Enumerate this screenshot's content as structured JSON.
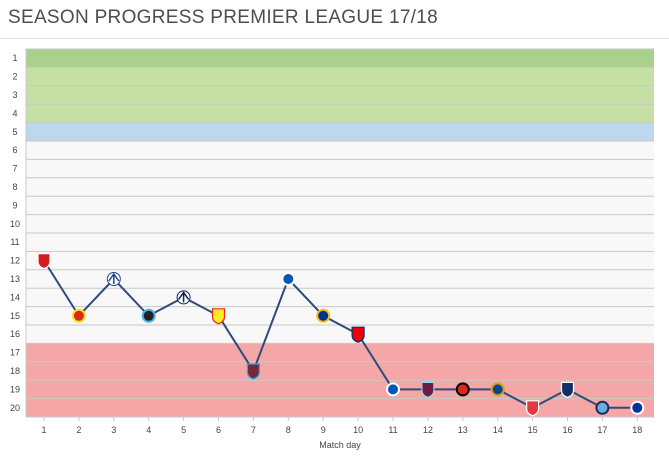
{
  "title": "SEASON PROGRESS PREMIER LEAGUE 17/18",
  "chart_data": {
    "type": "line",
    "xlabel": "Match day",
    "ylabel": "",
    "x": [
      1,
      2,
      3,
      4,
      5,
      6,
      7,
      8,
      9,
      10,
      11,
      12,
      13,
      14,
      15,
      16,
      17,
      18
    ],
    "y_ticks": [
      1,
      2,
      3,
      4,
      5,
      6,
      7,
      8,
      9,
      10,
      11,
      12,
      13,
      14,
      15,
      16,
      17,
      18,
      19,
      20
    ],
    "ylim": [
      1,
      20
    ],
    "y_reversed": true,
    "series": [
      {
        "values": [
          12,
          15,
          13,
          15,
          14,
          15,
          18,
          13,
          15,
          16,
          19,
          19,
          19,
          19,
          20,
          19,
          20,
          20
        ],
        "opponents": [
          "southampton",
          "man-united",
          "crystal-palace",
          "newcastle",
          "tottenham",
          "watford",
          "west-ham",
          "brighton",
          "leicester",
          "arsenal",
          "brighton",
          "burnley",
          "bournemouth",
          "chelsea",
          "stoke",
          "west-brom",
          "man-city",
          "everton"
        ],
        "line_color": "#2f4b7c"
      }
    ],
    "bands": [
      {
        "from": 1,
        "to": 1,
        "color": "#a9d18e"
      },
      {
        "from": 2,
        "to": 4,
        "color": "#c5e0a5"
      },
      {
        "from": 5,
        "to": 5,
        "color": "#bdd7ee"
      },
      {
        "from": 6,
        "to": 16,
        "color": "#f8f8f8"
      },
      {
        "from": 17,
        "to": 20,
        "color": "#f4a7a6"
      }
    ],
    "grid": true,
    "legend": "none"
  }
}
